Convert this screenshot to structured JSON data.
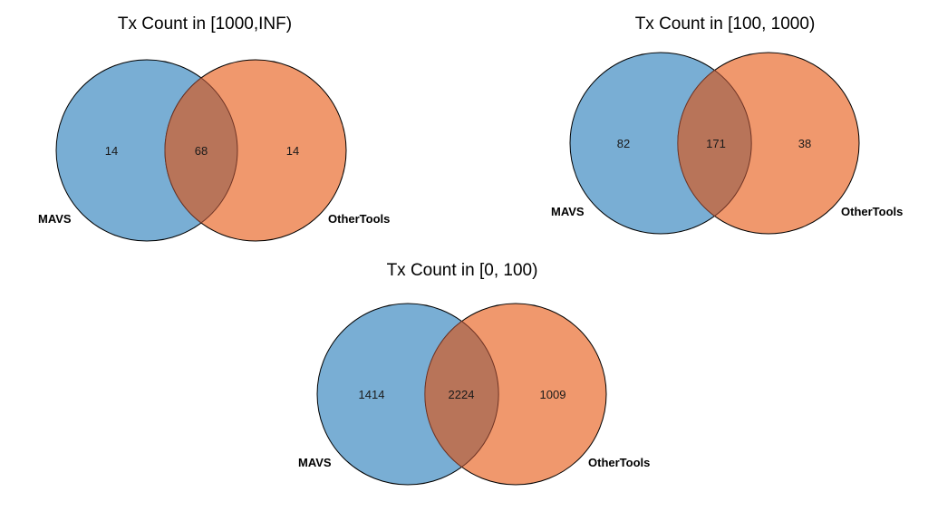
{
  "colors": {
    "left_fill": "#79aed4",
    "right_fill": "#f0986d",
    "overlap_fill": "#b87459",
    "outline": "#000000",
    "overlap_outline": "#6e3324"
  },
  "diagrams": [
    {
      "title": "Tx Count in [1000,INF)",
      "left_label": "MAVS",
      "right_label": "OtherTools",
      "left_only": "14",
      "overlap": "68",
      "right_only": "14"
    },
    {
      "title": "Tx Count in [100, 1000)",
      "left_label": "MAVS",
      "right_label": "OtherTools",
      "left_only": "82",
      "overlap": "171",
      "right_only": "38"
    },
    {
      "title": "Tx Count in [0, 100)",
      "left_label": "MAVS",
      "right_label": "OtherTools",
      "left_only": "1414",
      "overlap": "2224",
      "right_only": "1009"
    }
  ]
}
